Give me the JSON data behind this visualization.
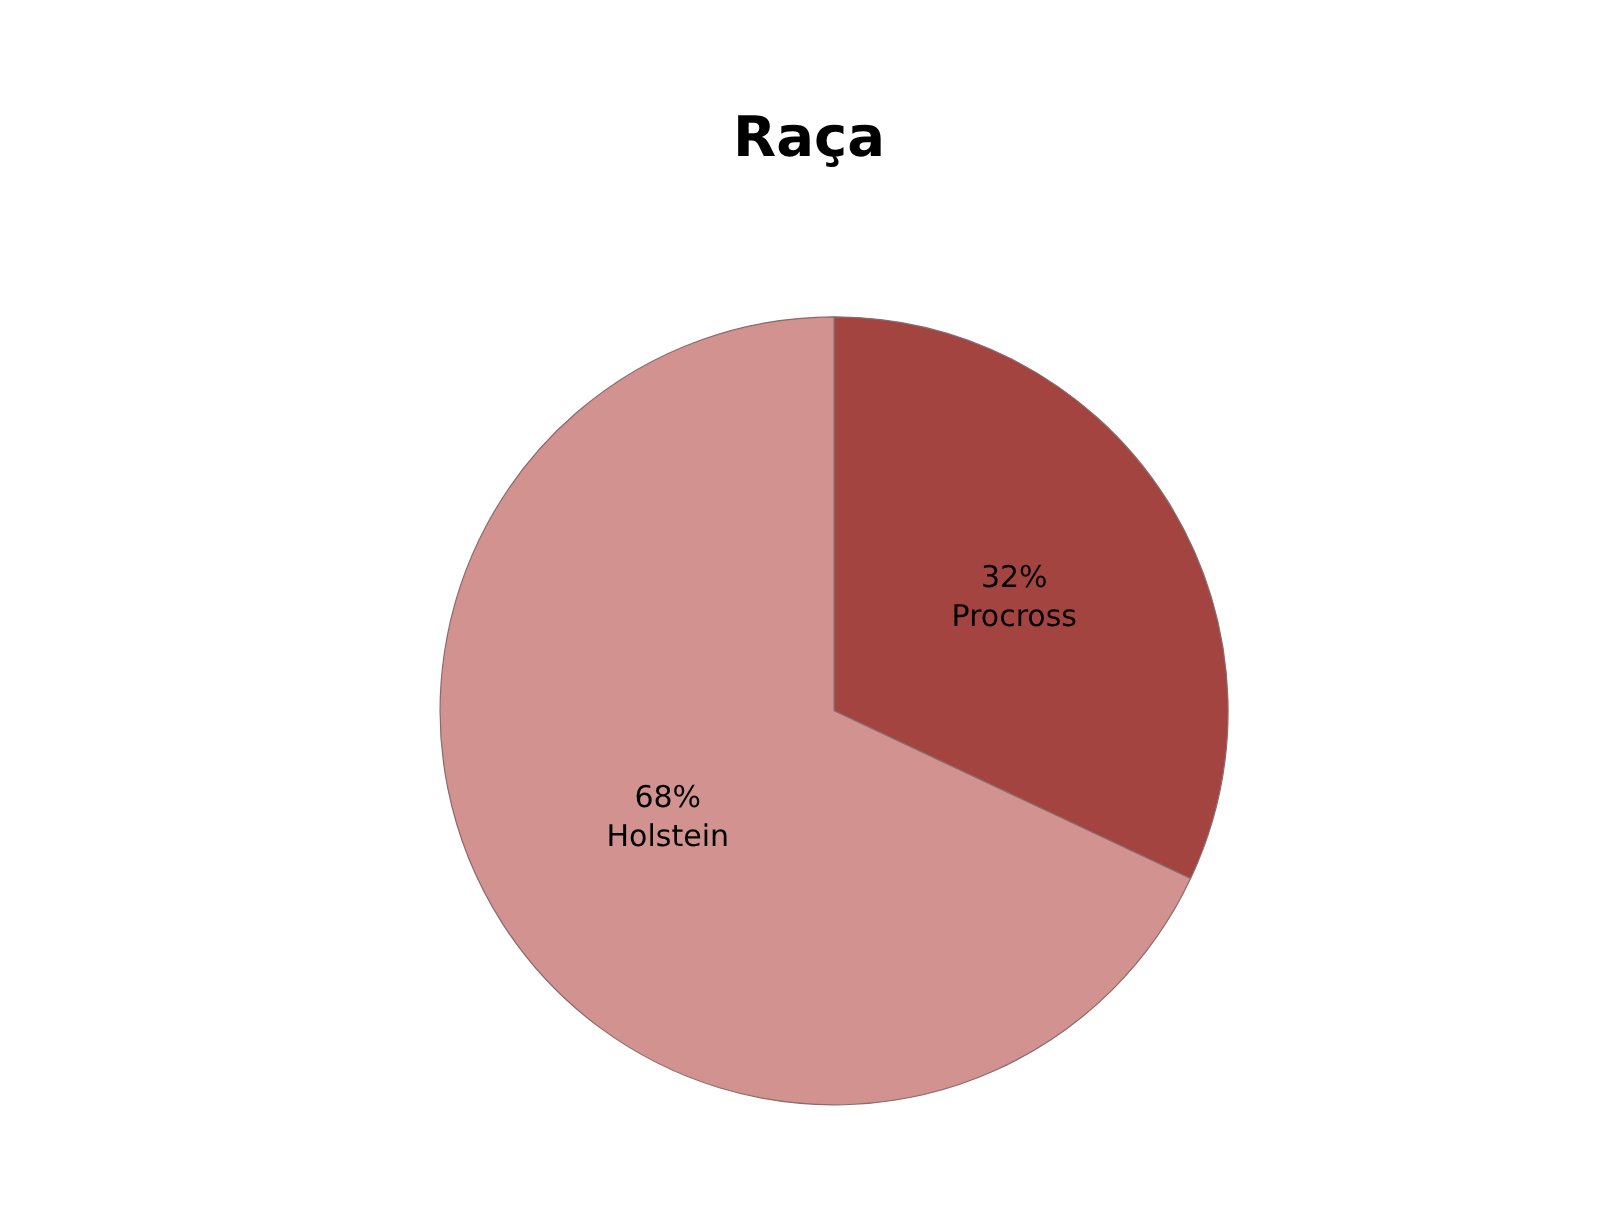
{
  "chart_data": {
    "type": "pie",
    "title": "Raça",
    "categories": [
      "Procross",
      "Holstein"
    ],
    "values": [
      32,
      68
    ],
    "value_labels": [
      "32%",
      "68%"
    ],
    "colors": [
      "#a44441",
      "#d19290"
    ],
    "legend": false
  }
}
